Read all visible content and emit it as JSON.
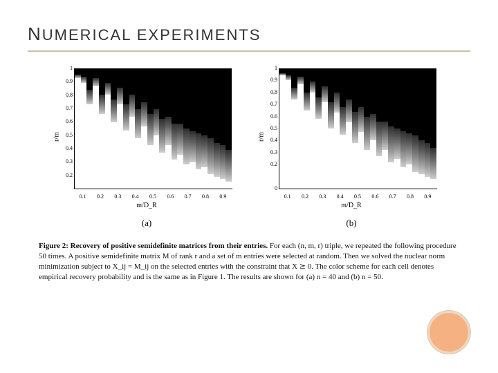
{
  "title_lead": "N",
  "title_rest": "UMERICAL EXPERIMENTS",
  "accent_color": "#c9c0a8",
  "orb": {
    "fill": "#f6b183",
    "ring": "#edd8c6"
  },
  "panels": [
    {
      "sublabel": "(a)",
      "ylabel": "r/m",
      "xlabel": "m/D_R",
      "y_ticks": [
        0.2,
        0.3,
        0.4,
        0.5,
        0.6,
        0.7,
        0.8,
        0.9,
        1
      ],
      "x_ticks": [
        0.1,
        0.2,
        0.3,
        0.4,
        0.5,
        0.6,
        0.7,
        0.8,
        0.9
      ],
      "y_range": [
        0.1,
        1.0
      ],
      "x_range": [
        0.05,
        0.95
      ],
      "heat": {
        "black": "#000000",
        "greys": [
          "#2e2e2e",
          "#525252",
          "#7a7a7a",
          "#a3a3a3",
          "#cfcfcf"
        ],
        "white": "#ffffff",
        "cols": [
          {
            "w": 0.92,
            "b": 0.05
          },
          {
            "w": 0.88,
            "b": 0.07
          },
          {
            "w": 0.7,
            "b": 0.18
          },
          {
            "w": 0.85,
            "b": 0.08
          },
          {
            "w": 0.62,
            "b": 0.22
          },
          {
            "w": 0.78,
            "b": 0.12
          },
          {
            "w": 0.55,
            "b": 0.26
          },
          {
            "w": 0.7,
            "b": 0.16
          },
          {
            "w": 0.48,
            "b": 0.3
          },
          {
            "w": 0.6,
            "b": 0.22
          },
          {
            "w": 0.42,
            "b": 0.34
          },
          {
            "w": 0.52,
            "b": 0.28
          },
          {
            "w": 0.36,
            "b": 0.38
          },
          {
            "w": 0.44,
            "b": 0.34
          },
          {
            "w": 0.3,
            "b": 0.42
          },
          {
            "w": 0.36,
            "b": 0.4
          },
          {
            "w": 0.24,
            "b": 0.46
          },
          {
            "w": 0.28,
            "b": 0.46
          },
          {
            "w": 0.2,
            "b": 0.5
          },
          {
            "w": 0.22,
            "b": 0.52
          },
          {
            "w": 0.16,
            "b": 0.54
          },
          {
            "w": 0.18,
            "b": 0.56
          },
          {
            "w": 0.12,
            "b": 0.58
          },
          {
            "w": 0.1,
            "b": 0.62
          },
          {
            "w": 0.08,
            "b": 0.64
          },
          {
            "w": 0.06,
            "b": 0.68
          }
        ]
      }
    },
    {
      "sublabel": "(b)",
      "ylabel": "r/m",
      "xlabel": "m/D_R",
      "y_ticks": [
        0,
        0.2,
        0.3,
        0.4,
        0.5,
        0.6,
        0.7,
        0.8,
        0.9,
        1
      ],
      "x_ticks": [
        0.1,
        0.2,
        0.3,
        0.4,
        0.5,
        0.6,
        0.7,
        0.8,
        0.9
      ],
      "y_range": [
        0.0,
        1.0
      ],
      "x_range": [
        0.05,
        0.95
      ],
      "heat": {
        "black": "#000000",
        "greys": [
          "#2e2e2e",
          "#525252",
          "#7a7a7a",
          "#a3a3a3",
          "#cfcfcf"
        ],
        "white": "#ffffff",
        "cols": [
          {
            "w": 0.94,
            "b": 0.04
          },
          {
            "w": 0.9,
            "b": 0.06
          },
          {
            "w": 0.74,
            "b": 0.16
          },
          {
            "w": 0.87,
            "b": 0.07
          },
          {
            "w": 0.65,
            "b": 0.2
          },
          {
            "w": 0.8,
            "b": 0.11
          },
          {
            "w": 0.58,
            "b": 0.24
          },
          {
            "w": 0.72,
            "b": 0.15
          },
          {
            "w": 0.5,
            "b": 0.28
          },
          {
            "w": 0.63,
            "b": 0.2
          },
          {
            "w": 0.45,
            "b": 0.32
          },
          {
            "w": 0.55,
            "b": 0.26
          },
          {
            "w": 0.38,
            "b": 0.36
          },
          {
            "w": 0.47,
            "b": 0.32
          },
          {
            "w": 0.32,
            "b": 0.4
          },
          {
            "w": 0.4,
            "b": 0.38
          },
          {
            "w": 0.27,
            "b": 0.44
          },
          {
            "w": 0.32,
            "b": 0.44
          },
          {
            "w": 0.22,
            "b": 0.48
          },
          {
            "w": 0.25,
            "b": 0.5
          },
          {
            "w": 0.18,
            "b": 0.52
          },
          {
            "w": 0.2,
            "b": 0.54
          },
          {
            "w": 0.14,
            "b": 0.56
          },
          {
            "w": 0.12,
            "b": 0.6
          },
          {
            "w": 0.1,
            "b": 0.62
          },
          {
            "w": 0.08,
            "b": 0.66
          }
        ]
      }
    }
  ],
  "caption_bold": "Figure 2: Recovery of positive semidefinite matrices from their entries.",
  "caption_rest": " For each (n, m, r) triple, we repeated the following procedure 50 times. A positive semidefinite matrix M of rank r and a set of m entries were selected at random. Then we solved the nuclear norm minimization subject to X_ij = M_ij on the selected entries with the constraint that X ⪰ 0. The color scheme for each cell denotes empirical recovery probability and is the same as in Figure 1. The results are shown for (a) n = 40 and (b) n = 50."
}
